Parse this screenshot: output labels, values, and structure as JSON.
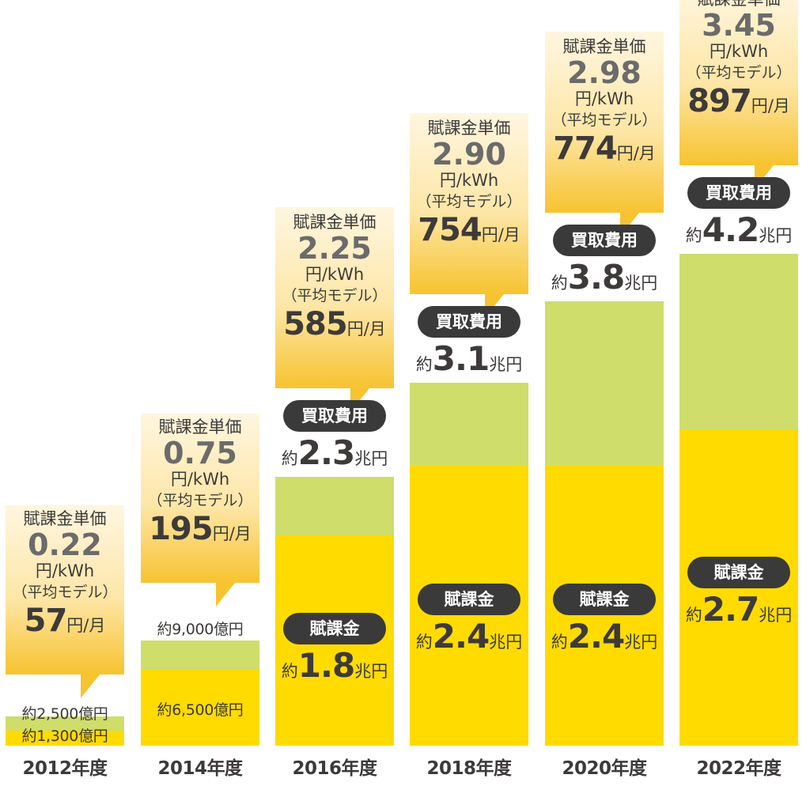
{
  "chart_data": {
    "type": "bar",
    "stacked": true,
    "categories": [
      "2012年度",
      "2014年度",
      "2016年度",
      "2018年度",
      "2020年度",
      "2022年度"
    ],
    "series": [
      {
        "values": [
          0.13,
          0.65,
          1.8,
          2.4,
          2.4,
          2.7
        ]
      },
      {
        "values": [
          0.25,
          0.9,
          2.3,
          3.1,
          3.8,
          4.2
        ]
      }
    ],
    "unit_label": "円/kWh",
    "model_label": "（平均モデル）",
    "rate_title": "賦課金単価",
    "monthly_suffix": "円/月",
    "levy_pill": "賦課金",
    "purchase_pill": "買取費用",
    "approx_prefix": "約",
    "trillion_suffix": "兆円",
    "years": [
      {
        "label": "2012年度",
        "rate": "0.22",
        "monthly": "57",
        "levy_text": "約1,300億円",
        "total_text": "約2,500億円"
      },
      {
        "label": "2014年度",
        "rate": "0.75",
        "monthly": "195",
        "levy_text": "約6,500億円",
        "total_text": "約9,000億円"
      },
      {
        "label": "2016年度",
        "rate": "2.25",
        "monthly": "585",
        "levy_amount": "1.8",
        "total_amount": "2.3"
      },
      {
        "label": "2018年度",
        "rate": "2.90",
        "monthly": "754",
        "levy_amount": "2.4",
        "total_amount": "3.1"
      },
      {
        "label": "2020年度",
        "rate": "2.98",
        "monthly": "774",
        "levy_amount": "2.4",
        "total_amount": "3.8"
      },
      {
        "label": "2022年度",
        "rate": "3.45",
        "monthly": "897",
        "levy_amount": "2.7",
        "total_amount": "4.2"
      }
    ],
    "colors": {
      "levy": "#ffdb00",
      "purchase": "#cfdd6a",
      "pill": "#3a3a3a",
      "text": "#3d3a39"
    }
  }
}
